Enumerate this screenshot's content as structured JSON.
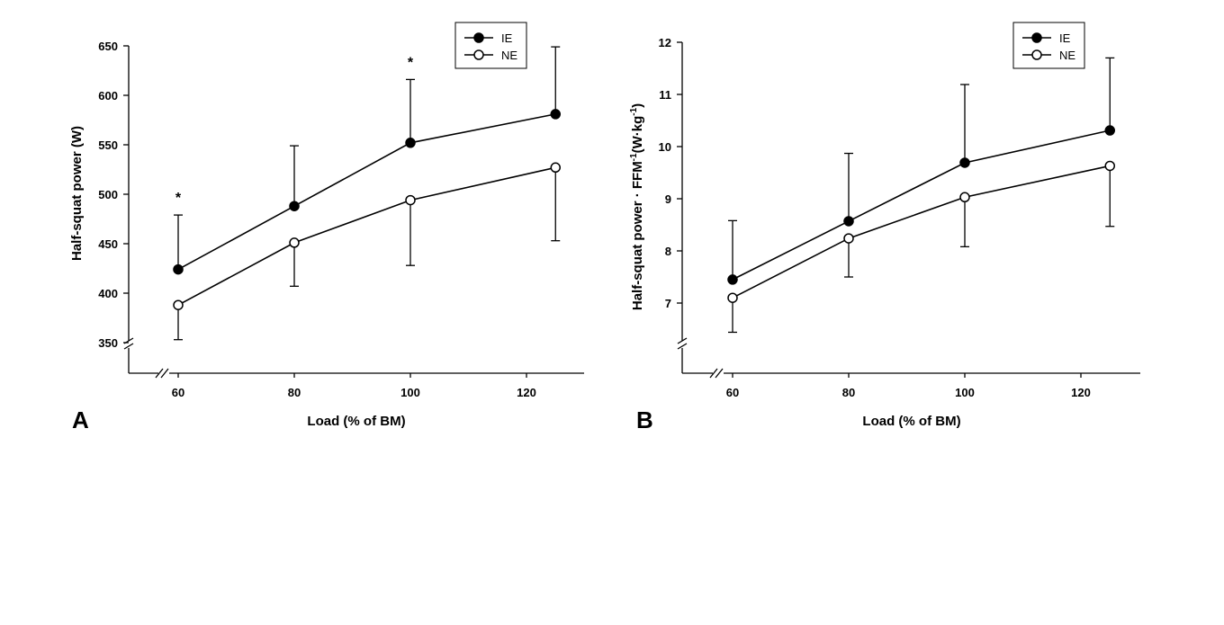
{
  "chart_data": [
    {
      "type": "line",
      "panel": "A",
      "xlabel": "Load (% of BM)",
      "ylabel": "Half-squat power (W)",
      "x": [
        60,
        80,
        100,
        120
      ],
      "x_positions": [
        60,
        80,
        100,
        125
      ],
      "xlim": [
        51.5,
        128.5
      ],
      "ylim": [
        350,
        650
      ],
      "yticks": [
        350,
        400,
        450,
        500,
        550,
        600,
        650
      ],
      "axis_break": true,
      "series": [
        {
          "name": "IE",
          "marker": "filled",
          "values": [
            424,
            488,
            552,
            581
          ],
          "error_dir": "up",
          "errors": [
            55,
            61,
            64,
            68
          ]
        },
        {
          "name": "NE",
          "marker": "open",
          "values": [
            388,
            451,
            494,
            527
          ],
          "error_dir": "down",
          "errors": [
            35,
            44,
            66,
            74
          ]
        }
      ],
      "annotations": [
        {
          "text": "*",
          "x": 60
        },
        {
          "text": "*",
          "x": 100
        }
      ],
      "legend": "top-right"
    },
    {
      "type": "line",
      "panel": "B",
      "xlabel": "Load (% of BM)",
      "ylabel_main": "Half-squat power · FFM",
      "ylabel_sup1": "-1",
      "ylabel_unit": "(W·kg",
      "ylabel_sup2": "-1",
      "ylabel_close": ")",
      "x": [
        60,
        80,
        100,
        120
      ],
      "x_positions": [
        60,
        80,
        100,
        125
      ],
      "xlim": [
        51.5,
        128.5
      ],
      "ylim": [
        6,
        12
      ],
      "yticks": [
        7,
        8,
        9,
        10,
        11,
        12
      ],
      "axis_break": true,
      "series": [
        {
          "name": "IE",
          "marker": "filled",
          "values": [
            7.45,
            8.57,
            9.69,
            10.31
          ],
          "error_dir": "up",
          "errors": [
            1.13,
            1.3,
            1.5,
            1.39
          ]
        },
        {
          "name": "NE",
          "marker": "open",
          "values": [
            7.1,
            8.24,
            9.03,
            9.63
          ],
          "error_dir": "down",
          "errors": [
            0.66,
            0.74,
            0.95,
            1.16
          ]
        }
      ],
      "annotations": [],
      "legend": "top-right"
    }
  ]
}
